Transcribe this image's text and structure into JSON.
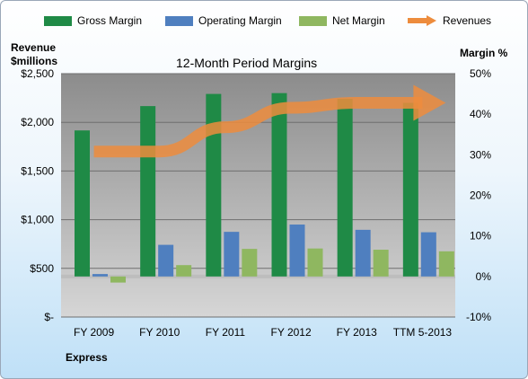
{
  "chart_data": {
    "type": "bar",
    "title": "12-Month Period Margins",
    "company": "Express",
    "left_axis_title": [
      "Revenue",
      "$millions"
    ],
    "right_axis_title": "Margin %",
    "categories": [
      "FY 2009",
      "FY 2010",
      "FY 2011",
      "FY 2012",
      "FY 2013",
      "TTM 5-2013"
    ],
    "left_ticks": [
      "$-",
      "$500",
      "$1,000",
      "$1,500",
      "$2,000",
      "$2,500"
    ],
    "right_ticks": [
      "-10%",
      "0%",
      "10%",
      "20%",
      "30%",
      "40%",
      "50%"
    ],
    "left_ylim": [
      0,
      2500
    ],
    "right_ylim": [
      -10,
      50
    ],
    "series": [
      {
        "name": "Gross Margin",
        "axis": "right",
        "kind": "bar",
        "color": "#1f8a46",
        "values": [
          36,
          42,
          45,
          45.2,
          43.8,
          42.8
        ]
      },
      {
        "name": "Operating Margin",
        "axis": "right",
        "kind": "bar",
        "color": "#4f7fbf",
        "values": [
          0.6,
          7.8,
          11,
          12.8,
          11.5,
          10.9
        ]
      },
      {
        "name": "Net Margin",
        "axis": "right",
        "kind": "bar",
        "color": "#8fb760",
        "values": [
          -1.5,
          2.8,
          6.8,
          6.9,
          6.6,
          6.2
        ]
      },
      {
        "name": "Revenues",
        "axis": "left",
        "kind": "line",
        "color": "#ed8c3d",
        "values": [
          1700,
          1700,
          1950,
          2150,
          2200,
          2200
        ]
      }
    ],
    "grid": true,
    "legend_position": "top"
  }
}
